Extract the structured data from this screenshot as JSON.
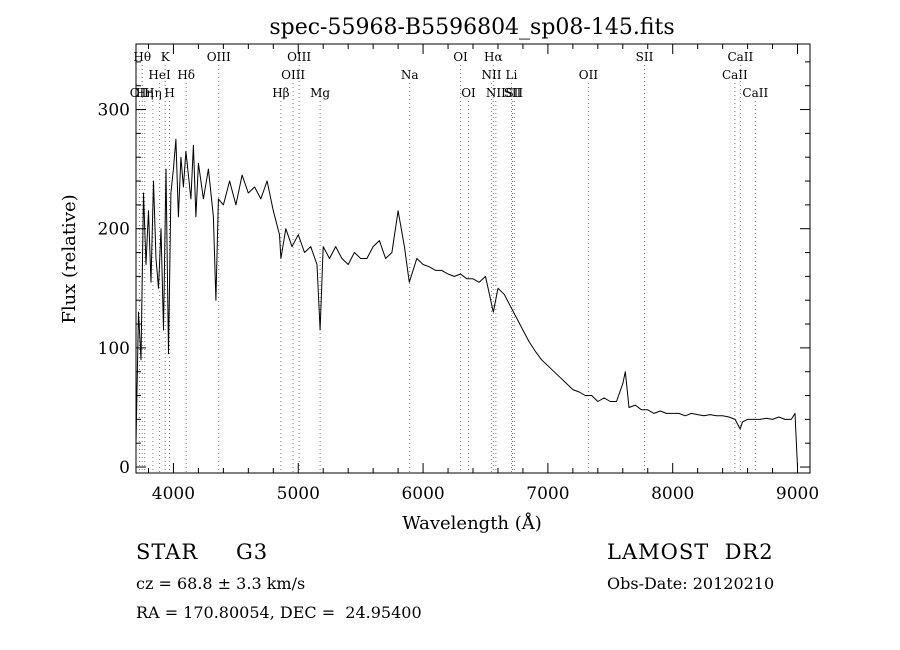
{
  "chart_data": {
    "type": "line",
    "title": "spec-55968-B5596804_sp08-145.fits",
    "xlabel": "Wavelength (Å)",
    "ylabel": "Flux (relative)",
    "xlim": [
      3700,
      9100
    ],
    "ylim": [
      -5,
      355
    ],
    "xticks": [
      {
        "value": 4000,
        "label": "4000"
      },
      {
        "value": 5000,
        "label": "5000"
      },
      {
        "value": 6000,
        "label": "6000"
      },
      {
        "value": 7000,
        "label": "7000"
      },
      {
        "value": 8000,
        "label": "8000"
      },
      {
        "value": 9000,
        "label": "9000"
      }
    ],
    "yticks": [
      {
        "value": 0,
        "label": "0"
      },
      {
        "value": 100,
        "label": "100"
      },
      {
        "value": 200,
        "label": "200"
      },
      {
        "value": 300,
        "label": "300"
      }
    ],
    "grid": false,
    "series": [
      {
        "x": [
          3700,
          3720,
          3740,
          3760,
          3780,
          3800,
          3820,
          3840,
          3860,
          3880,
          3900,
          3920,
          3940,
          3960,
          3980,
          4000,
          4020,
          4040,
          4060,
          4080,
          4100,
          4120,
          4140,
          4160,
          4180,
          4200,
          4240,
          4280,
          4320,
          4340,
          4360,
          4400,
          4450,
          4500,
          4550,
          4600,
          4650,
          4700,
          4750,
          4800,
          4850,
          4861,
          4900,
          4950,
          5000,
          5050,
          5100,
          5150,
          5175,
          5200,
          5250,
          5300,
          5350,
          5400,
          5450,
          5500,
          5550,
          5600,
          5650,
          5700,
          5750,
          5800,
          5850,
          5890,
          5950,
          6000,
          6050,
          6100,
          6150,
          6200,
          6250,
          6300,
          6350,
          6400,
          6450,
          6500,
          6563,
          6600,
          6650,
          6700,
          6750,
          6800,
          6850,
          6900,
          6950,
          7000,
          7050,
          7100,
          7150,
          7200,
          7250,
          7300,
          7350,
          7400,
          7450,
          7500,
          7550,
          7600,
          7620,
          7650,
          7700,
          7750,
          7800,
          7850,
          7900,
          7950,
          8000,
          8050,
          8100,
          8150,
          8200,
          8250,
          8300,
          8350,
          8400,
          8450,
          8500,
          8540,
          8560,
          8600,
          8650,
          8700,
          8750,
          8800,
          8850,
          8900,
          8950,
          8980,
          9000
        ],
        "y": [
          20,
          130,
          90,
          230,
          170,
          215,
          155,
          240,
          175,
          150,
          200,
          115,
          250,
          95,
          230,
          250,
          275,
          210,
          260,
          235,
          265,
          245,
          225,
          270,
          210,
          255,
          225,
          250,
          210,
          140,
          225,
          220,
          240,
          220,
          245,
          230,
          235,
          225,
          240,
          215,
          195,
          175,
          200,
          185,
          195,
          180,
          185,
          170,
          115,
          185,
          175,
          185,
          175,
          170,
          180,
          175,
          175,
          185,
          190,
          175,
          180,
          215,
          185,
          155,
          175,
          170,
          168,
          165,
          165,
          162,
          160,
          162,
          158,
          158,
          155,
          160,
          130,
          150,
          145,
          135,
          125,
          115,
          105,
          97,
          90,
          85,
          80,
          75,
          70,
          65,
          63,
          60,
          60,
          55,
          58,
          55,
          55,
          70,
          80,
          50,
          52,
          48,
          48,
          45,
          47,
          45,
          45,
          45,
          43,
          45,
          44,
          43,
          44,
          43,
          43,
          42,
          40,
          32,
          38,
          40,
          40,
          40,
          41,
          40,
          42,
          40,
          40,
          45,
          0
        ]
      }
    ],
    "line_ids": [
      {
        "wavelength": 3727,
        "label": "OII",
        "row": 3
      },
      {
        "wavelength": 3750,
        "label": "Hθ",
        "row": 1
      },
      {
        "wavelength": 3770,
        "label": "Hη",
        "row": 3
      },
      {
        "wavelength": 3835,
        "label": "Hη",
        "row": 3
      },
      {
        "wavelength": 3889,
        "label": "HeI",
        "row": 2
      },
      {
        "wavelength": 3934,
        "label": "K",
        "row": 1
      },
      {
        "wavelength": 3969,
        "label": "H",
        "row": 3
      },
      {
        "wavelength": 4102,
        "label": "Hδ",
        "row": 2
      },
      {
        "wavelength": 4363,
        "label": "OIII",
        "row": 1
      },
      {
        "wavelength": 4861,
        "label": "Hβ",
        "row": 3
      },
      {
        "wavelength": 4959,
        "label": "OIII",
        "row": 2
      },
      {
        "wavelength": 5007,
        "label": "OIII",
        "row": 1
      },
      {
        "wavelength": 5175,
        "label": "Mg",
        "row": 3
      },
      {
        "wavelength": 5893,
        "label": "Na",
        "row": 2
      },
      {
        "wavelength": 6300,
        "label": "OI",
        "row": 1
      },
      {
        "wavelength": 6364,
        "label": "OI",
        "row": 3
      },
      {
        "wavelength": 6548,
        "label": "NII",
        "row": 2
      },
      {
        "wavelength": 6563,
        "label": "Hα",
        "row": 1
      },
      {
        "wavelength": 6583,
        "label": "NII",
        "row": 3
      },
      {
        "wavelength": 6708,
        "label": "Li",
        "row": 2
      },
      {
        "wavelength": 6717,
        "label": "SII",
        "row": 3
      },
      {
        "wavelength": 6731,
        "label": "SII",
        "row": 3
      },
      {
        "wavelength": 7325,
        "label": "OII",
        "row": 2
      },
      {
        "wavelength": 7774,
        "label": "SII",
        "row": 1
      },
      {
        "wavelength": 8498,
        "label": "CaII",
        "row": 2
      },
      {
        "wavelength": 8542,
        "label": "CaII",
        "row": 1
      },
      {
        "wavelength": 8662,
        "label": "CaII",
        "row": 3
      }
    ]
  },
  "info": {
    "class": "STAR",
    "subclass": "G3",
    "survey": "LAMOST  DR2",
    "cz": "cz = 68.8 ± 3.3 km/s",
    "obs_date": "Obs-Date: 20120210",
    "coords": "RA = 170.80054, DEC =  24.95400"
  }
}
